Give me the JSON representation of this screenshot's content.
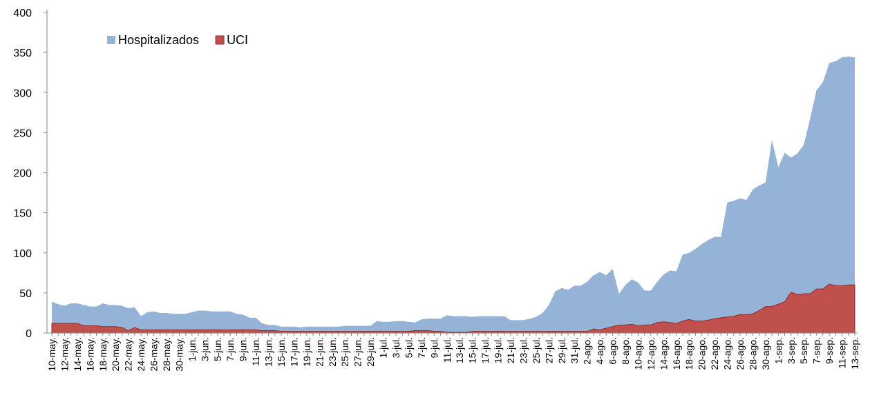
{
  "chart_data": {
    "type": "area",
    "categories": [
      "10-may.",
      null,
      "12-may.",
      null,
      "14-may.",
      null,
      "16-may.",
      null,
      "18-may.",
      null,
      "20-may.",
      null,
      "22-may.",
      null,
      "24-may.",
      null,
      "26-may.",
      null,
      "28-may.",
      null,
      "30-may.",
      null,
      "1-jun.",
      null,
      "3-jun.",
      null,
      "5-jun.",
      null,
      "7-jun.",
      null,
      "9-jun.",
      null,
      "11-jun.",
      null,
      "13-jun.",
      null,
      "15-jun.",
      null,
      "17-jun.",
      null,
      "19-jun.",
      null,
      "21-jun.",
      null,
      "23-jun.",
      null,
      "25-jun.",
      null,
      "27-jun.",
      null,
      "29-jun.",
      null,
      "1-jul.",
      null,
      "3-jul.",
      null,
      "5-jul.",
      null,
      "7-jul.",
      null,
      "9-jul.",
      null,
      "11-jul.",
      null,
      "13-jul.",
      null,
      "15-jul.",
      null,
      "17-jul.",
      null,
      "19-jul.",
      null,
      "21-jul.",
      null,
      "23-jul.",
      null,
      "25-jul.",
      null,
      "27-jul.",
      null,
      "29-jul.",
      null,
      "31-jul.",
      null,
      "2-ago.",
      null,
      "4-ago.",
      null,
      "6-ago.",
      null,
      "8-ago.",
      null,
      "10-ago.",
      null,
      "12-ago.",
      null,
      "14-ago.",
      null,
      "16-ago.",
      null,
      "18-ago.",
      null,
      "20-ago.",
      null,
      "22-ago.",
      null,
      "24-ago.",
      null,
      "26-ago.",
      null,
      "28-ago.",
      null,
      "30-ago.",
      null,
      "1-sep.",
      null,
      "3-sep.",
      null,
      "5-sep.",
      null,
      "7-sep.",
      null,
      "9-sep.",
      null,
      "11-sep.",
      null,
      "13-sep."
    ],
    "series": [
      {
        "name": "Hospitalizados",
        "color": "#95b3d7",
        "values": [
          39,
          36,
          34,
          37,
          37,
          35,
          33,
          33,
          37,
          35,
          35,
          34,
          31,
          32,
          21,
          26,
          27,
          25,
          25,
          24,
          24,
          24,
          26,
          28,
          28,
          27,
          27,
          27,
          27,
          24,
          23,
          19,
          19,
          12,
          10,
          10,
          8,
          8,
          8,
          7,
          8,
          8,
          8,
          8,
          8,
          8,
          9,
          9,
          9,
          9,
          9,
          15,
          14,
          14,
          15,
          15,
          14,
          13,
          17,
          18,
          18,
          18,
          22,
          21,
          21,
          21,
          20,
          21,
          21,
          21,
          21,
          21,
          16,
          16,
          16,
          18,
          20,
          25,
          35,
          52,
          56,
          54,
          59,
          59,
          64,
          72,
          76,
          72,
          80,
          49,
          60,
          67,
          63,
          53,
          53,
          64,
          73,
          78,
          77,
          98,
          100,
          105,
          111,
          116,
          120,
          120,
          163,
          165,
          168,
          166,
          179,
          184,
          188,
          241,
          207,
          225,
          219,
          224,
          235,
          268,
          303,
          313,
          337,
          339,
          344,
          345,
          344
        ]
      },
      {
        "name": "UCI",
        "color": "#c0504d",
        "values": [
          12,
          12,
          12,
          12,
          12,
          9,
          9,
          9,
          8,
          8,
          8,
          7,
          3,
          7,
          4,
          4,
          4,
          4,
          4,
          4,
          4,
          4,
          4,
          4,
          4,
          4,
          4,
          4,
          4,
          4,
          4,
          4,
          4,
          3,
          3,
          3,
          2,
          2,
          2,
          2,
          2,
          2,
          2,
          2,
          2,
          2,
          2,
          2,
          2,
          2,
          2,
          2,
          2,
          2,
          2,
          2,
          2,
          3,
          3,
          3,
          2,
          2,
          1,
          1,
          1,
          1,
          2,
          2,
          2,
          2,
          2,
          2,
          2,
          2,
          2,
          2,
          2,
          2,
          2,
          2,
          2,
          2,
          2,
          2,
          2,
          5,
          4,
          6,
          8,
          10,
          10,
          11,
          9,
          10,
          10,
          13,
          14,
          13,
          12,
          15,
          17,
          15,
          15,
          16,
          18,
          19,
          20,
          21,
          23,
          23,
          24,
          28,
          33,
          33,
          36,
          39,
          51,
          48,
          49,
          49,
          55,
          55,
          61,
          59,
          59,
          60,
          60
        ]
      }
    ],
    "ylim": [
      0,
      400
    ],
    "yticks": [
      0,
      50,
      100,
      150,
      200,
      250,
      300,
      350,
      400
    ],
    "grid": false,
    "legend": "top-left"
  }
}
